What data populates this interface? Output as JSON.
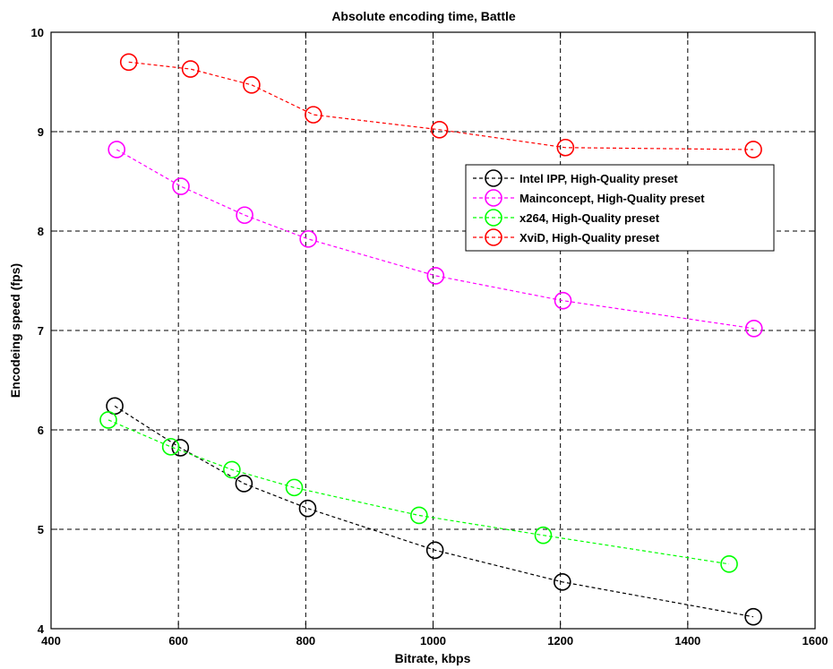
{
  "chart_data": {
    "type": "line",
    "title": "Absolute encoding time, Battle",
    "xlabel": "Bitrate, kbps",
    "ylabel": "Encodeing speed (fps)",
    "xlim": [
      400,
      1600
    ],
    "ylim": [
      4,
      10
    ],
    "xticks": [
      "400",
      "600",
      "800",
      "1000",
      "1200",
      "1400",
      "1600"
    ],
    "yticks": [
      "4",
      "5",
      "6",
      "7",
      "8",
      "9",
      "10"
    ],
    "grid": true,
    "legend_position": "right",
    "series": [
      {
        "name": "Intel IPP, High-Quality preset",
        "color": "#000000",
        "x": [
          500,
          603,
          703,
          803,
          1003,
          1203,
          1503
        ],
        "y": [
          6.24,
          5.82,
          5.46,
          5.21,
          4.79,
          4.47,
          4.12
        ]
      },
      {
        "name": "Mainconcept, High-Quality preset",
        "color": "#ff00ff",
        "x": [
          503,
          604,
          704,
          804,
          1004,
          1204,
          1504
        ],
        "y": [
          8.82,
          8.45,
          8.16,
          7.92,
          7.55,
          7.3,
          7.02
        ]
      },
      {
        "name": "x264, High-Quality preset",
        "color": "#00ff00",
        "x": [
          490,
          588,
          684,
          782,
          978,
          1173,
          1465
        ],
        "y": [
          6.1,
          5.83,
          5.6,
          5.42,
          5.14,
          4.94,
          4.65
        ]
      },
      {
        "name": "XviD, High-Quality preset",
        "color": "#ff0000",
        "x": [
          522,
          619,
          715,
          812,
          1010,
          1208,
          1503
        ],
        "y": [
          9.7,
          9.63,
          9.47,
          9.17,
          9.02,
          8.84,
          8.82
        ]
      }
    ]
  }
}
